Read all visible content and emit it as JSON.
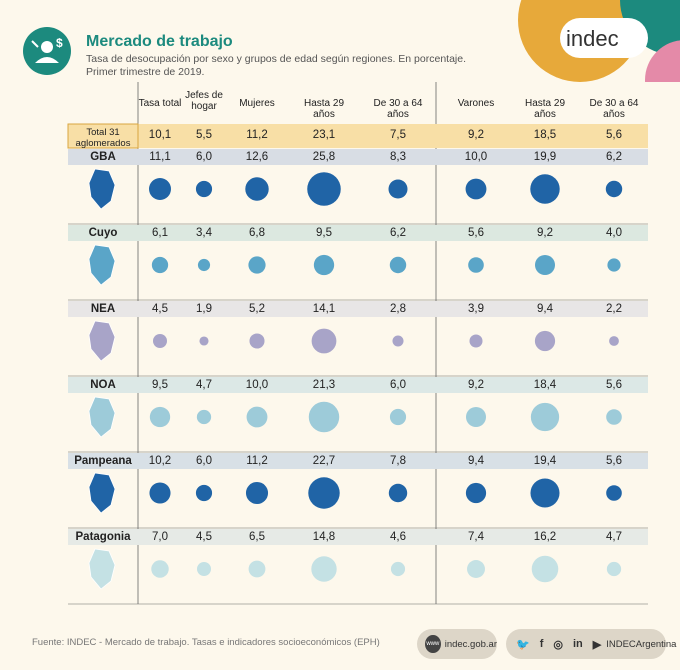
{
  "header": {
    "title": "Mercado de trabajo",
    "subtitle": "Tasa de desocupación por sexo y grupos de edad según regiones. En porcentaje. Primer trimestre de 2019.",
    "logo": "indec"
  },
  "columns": [
    "Tasa total",
    "Jefes de hogar",
    "Mujeres",
    "Hasta 29 años",
    "De 30 a 64 años",
    "Varones",
    "Hasta 29 años",
    "De 30 a 64 años"
  ],
  "total_row": {
    "label": "Total 31 aglomerados",
    "values": [
      "10,1",
      "5,5",
      "11,2",
      "23,1",
      "7,5",
      "9,2",
      "18,5",
      "5,6"
    ]
  },
  "chart_data": {
    "type": "table",
    "series": [
      {
        "name": "GBA",
        "values": [
          11.1,
          6.0,
          12.6,
          25.8,
          8.3,
          10.0,
          19.9,
          6.2
        ]
      },
      {
        "name": "Cuyo",
        "values": [
          6.1,
          3.4,
          6.8,
          9.5,
          6.2,
          5.6,
          9.2,
          4.0
        ]
      },
      {
        "name": "NEA",
        "values": [
          4.5,
          1.9,
          5.2,
          14.1,
          2.8,
          3.9,
          9.4,
          2.2
        ]
      },
      {
        "name": "NOA",
        "values": [
          9.5,
          4.7,
          10.0,
          21.3,
          6.0,
          9.2,
          18.4,
          5.6
        ]
      },
      {
        "name": "Pampeana",
        "values": [
          10.2,
          6.0,
          11.2,
          22.7,
          7.8,
          9.4,
          19.4,
          5.6
        ]
      },
      {
        "name": "Patagonia",
        "values": [
          7.0,
          4.5,
          6.5,
          14.8,
          4.6,
          7.4,
          16.2,
          4.7
        ]
      }
    ],
    "region_colors": [
      "#2064a6",
      "#5aa5c8",
      "#a8a4c8",
      "#9dcbd9",
      "#2064a6",
      "#c4e1e4"
    ]
  },
  "footer": {
    "source": "Fuente: INDEC - Mercado de trabajo. Tasas e indicadores socioeconómicos (EPH)",
    "website": "indec.gob.ar",
    "social": "INDECArgentina"
  }
}
